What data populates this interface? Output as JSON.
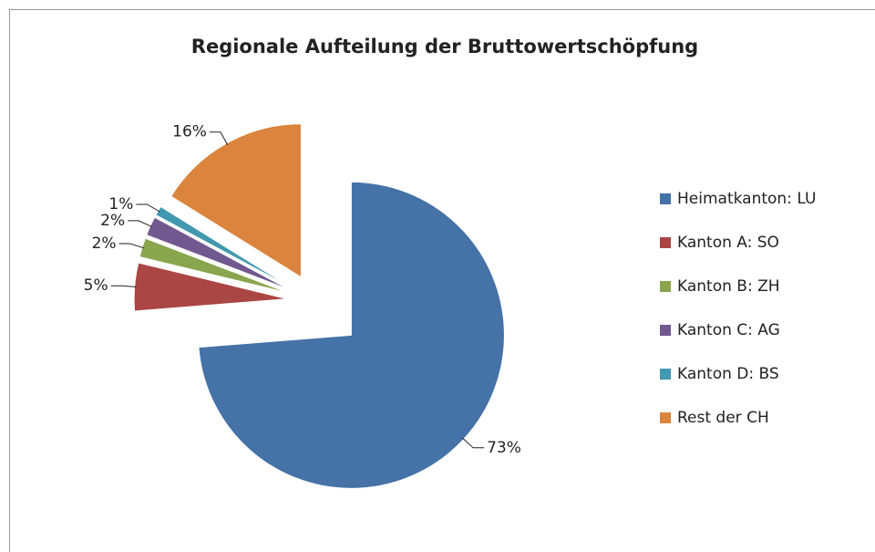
{
  "chart_data": {
    "type": "pie",
    "title": "Regionale Aufteilung der Bruttowertschöpfung",
    "categories": [
      "Heimatkanton: LU",
      "Kanton A: SO",
      "Kanton B: ZH",
      "Kanton C: AG",
      "Kanton D: BS",
      "Rest der CH"
    ],
    "values": [
      73,
      5,
      2,
      2,
      1,
      16
    ],
    "value_labels": [
      "73%",
      "5%",
      "2%",
      "2%",
      "1%",
      "16%"
    ],
    "colors": [
      "#4572a7",
      "#aa4643",
      "#89a54e",
      "#71588f",
      "#4198af",
      "#db843d"
    ],
    "legend": "right"
  }
}
